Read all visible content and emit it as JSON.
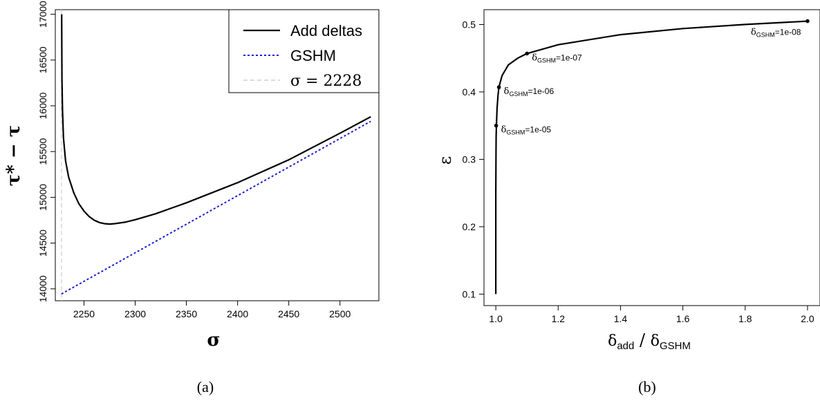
{
  "chart_data": [
    {
      "type": "line",
      "panel_caption": "(a)",
      "xlabel": "σ",
      "ylabel": "τ* − τ",
      "xlim": [
        2222,
        2538
      ],
      "ylim": [
        13870,
        17050
      ],
      "xticks": [
        2250,
        2300,
        2350,
        2400,
        2450,
        2500
      ],
      "yticks": [
        14000,
        14500,
        15000,
        15500,
        16000,
        16500,
        17000
      ],
      "legend_position": "top-right",
      "vline": {
        "x": 2228,
        "label": "σ = 2228",
        "color": "#cfcfcf",
        "style": "dashed"
      },
      "series": [
        {
          "name": "Add deltas",
          "color": "#000000",
          "style": "solid",
          "x": [
            2228.2,
            2228.5,
            2229,
            2230,
            2232,
            2235,
            2240,
            2245,
            2250,
            2255,
            2260,
            2265,
            2270,
            2275,
            2280,
            2290,
            2300,
            2320,
            2350,
            2400,
            2450,
            2500,
            2530
          ],
          "y": [
            17000,
            16300,
            15950,
            15650,
            15400,
            15220,
            15050,
            14930,
            14850,
            14790,
            14750,
            14725,
            14712,
            14708,
            14712,
            14728,
            14755,
            14820,
            14940,
            15160,
            15410,
            15700,
            15880
          ]
        },
        {
          "name": "GSHM",
          "color": "#1a1ad6",
          "style": "dotted",
          "x": [
            2228,
            2530
          ],
          "y": [
            13945,
            15830
          ]
        }
      ]
    },
    {
      "type": "line",
      "panel_caption": "(b)",
      "xlabel_main": "δ",
      "xlabel_num_sub": "add",
      "xlabel_den_sub": "GSHM",
      "ylabel": "ε",
      "xlim": [
        0.962,
        2.04
      ],
      "ylim": [
        0.083,
        0.522
      ],
      "xticks": [
        1.0,
        1.2,
        1.4,
        1.6,
        1.8,
        2.0
      ],
      "yticks": [
        0.1,
        0.2,
        0.3,
        0.4,
        0.5
      ],
      "series": [
        {
          "color": "#000000",
          "x": [
            1.0,
            1.0,
            1.0005,
            1.001,
            1.002,
            1.004,
            1.007,
            1.01,
            1.02,
            1.04,
            1.07,
            1.1,
            1.2,
            1.4,
            1.6,
            1.8,
            2.0
          ],
          "y": [
            0.1,
            0.25,
            0.31,
            0.335,
            0.35,
            0.375,
            0.395,
            0.407,
            0.424,
            0.44,
            0.45,
            0.457,
            0.47,
            0.485,
            0.494,
            0.5,
            0.505
          ]
        }
      ],
      "points": [
        {
          "x": 1.001,
          "y": 0.35,
          "sym": "δ",
          "sub": "GSHM",
          "value": "=1e-05"
        },
        {
          "x": 1.01,
          "y": 0.407,
          "sym": "δ",
          "sub": "GSHM",
          "value": "=1e-06"
        },
        {
          "x": 1.1,
          "y": 0.457,
          "sym": "δ",
          "sub": "GSHM",
          "value": "=1e-07"
        },
        {
          "x": 2.0,
          "y": 0.505,
          "sym": "δ",
          "sub": "GSHM",
          "value": "=1e-08"
        }
      ]
    }
  ]
}
